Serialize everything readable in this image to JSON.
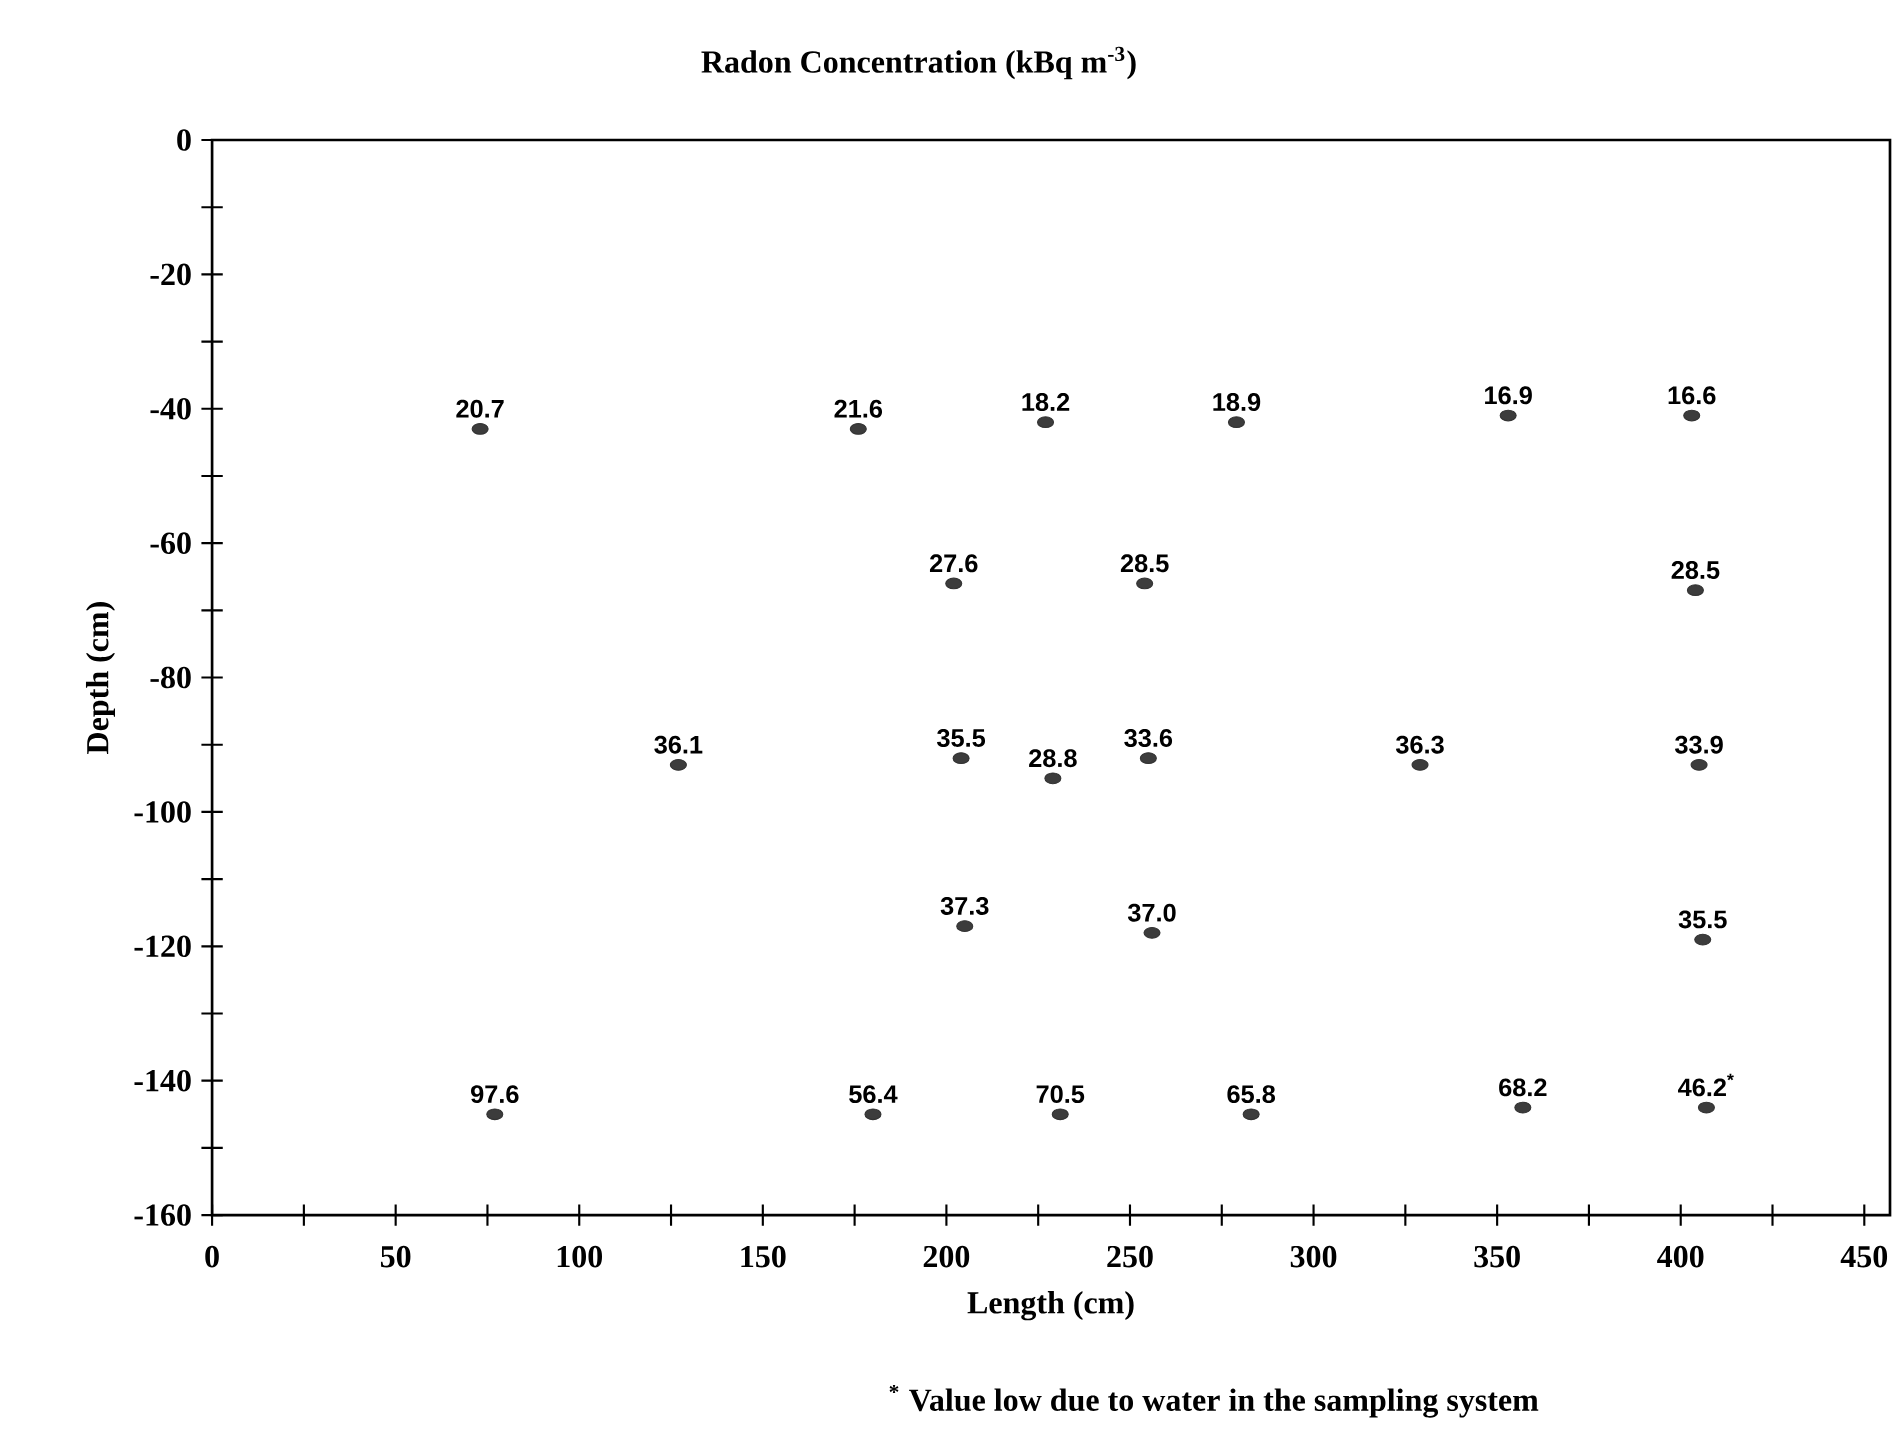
{
  "chart_data": {
    "type": "scatter",
    "title": "Radon Concentration (kBq m$^{-3}$)",
    "xlabel": "Length (cm)",
    "ylabel": "Depth (cm)",
    "series": [
      {
        "color": "#3c3c3c",
        "x": [
          73,
          176,
          227,
          279,
          353,
          403,
          202,
          254,
          404,
          127,
          204,
          229,
          255,
          329,
          405,
          205,
          256,
          406,
          77,
          180,
          231,
          283,
          357,
          407
        ],
        "values": [
          -43,
          -43,
          -42,
          -42,
          -41,
          -41,
          -66,
          -66,
          -67,
          -93,
          -92,
          -95,
          -92,
          -93,
          -93,
          -117,
          -118,
          -119,
          -145,
          -145,
          -145,
          -145,
          -144,
          -144
        ]
      }
    ],
    "marker": "circle",
    "grid": false,
    "xlim": [
      0,
      457
    ],
    "ylim": [
      -160,
      0
    ],
    "xticks": [
      0,
      {
        "value": 25,
        "label": null
      },
      50,
      {
        "value": 75,
        "label": null
      },
      100,
      {
        "value": 125,
        "label": null
      },
      150,
      {
        "value": 175,
        "label": null
      },
      200,
      {
        "value": 225,
        "label": null
      },
      250,
      {
        "value": 275,
        "label": null
      },
      300,
      {
        "value": 325,
        "label": null
      },
      350,
      {
        "value": 375,
        "label": null
      },
      400,
      {
        "value": 425,
        "label": null
      },
      450
    ],
    "yticks": [
      -160,
      {
        "value": -150,
        "label": null
      },
      -140,
      {
        "value": -130,
        "label": null
      },
      -120,
      {
        "value": -110,
        "label": null
      },
      -100,
      {
        "value": -90,
        "label": null
      },
      -80,
      {
        "value": -70,
        "label": null
      },
      -60,
      {
        "value": -50,
        "label": null
      },
      -40,
      {
        "value": -30,
        "label": null
      },
      -20,
      {
        "value": -10,
        "label": null
      },
      0
    ],
    "annotations": [
      {
        "text": "20.7",
        "x": 73,
        "y": -43
      },
      {
        "text": "21.6",
        "x": 176,
        "y": -43
      },
      {
        "text": "18.2",
        "x": 227,
        "y": -42
      },
      {
        "text": "18.9",
        "x": 279,
        "y": -42
      },
      {
        "text": "16.9",
        "x": 353,
        "y": -41
      },
      {
        "text": "16.6",
        "x": 403,
        "y": -41
      },
      {
        "text": "27.6",
        "x": 202,
        "y": -66
      },
      {
        "text": "28.5",
        "x": 254,
        "y": -66
      },
      {
        "text": "28.5",
        "x": 404,
        "y": -67
      },
      {
        "text": "36.1",
        "x": 127,
        "y": -93
      },
      {
        "text": "35.5",
        "x": 204,
        "y": -92
      },
      {
        "text": "28.8",
        "x": 229,
        "y": -95
      },
      {
        "text": "33.6",
        "x": 255,
        "y": -92
      },
      {
        "text": "36.3",
        "x": 329,
        "y": -93
      },
      {
        "text": "33.9",
        "x": 405,
        "y": -93
      },
      {
        "text": "37.3",
        "x": 205,
        "y": -117
      },
      {
        "text": "37.0",
        "x": 256,
        "y": -118
      },
      {
        "text": "35.5",
        "x": 406,
        "y": -119
      },
      {
        "text": "97.6",
        "x": 77,
        "y": -145
      },
      {
        "text": "56.4",
        "x": 180,
        "y": -145
      },
      {
        "text": "70.5",
        "x": 231,
        "y": -145
      },
      {
        "text": "65.8",
        "x": 283,
        "y": -145
      },
      {
        "text": "68.2",
        "x": 357,
        "y": -144
      },
      {
        "text": "46.2$^{*}$",
        "x": 407,
        "y": -144
      },
      "$^{*}$ Value low due to water in the sampling system"
    ]
  }
}
